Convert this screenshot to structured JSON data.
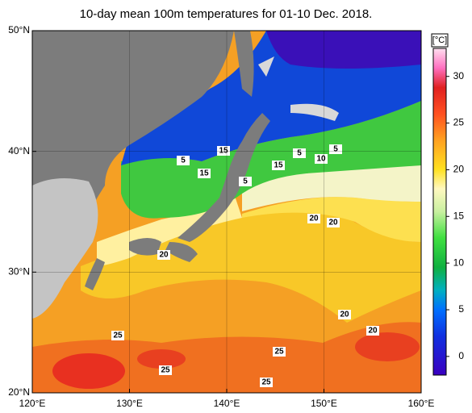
{
  "title": "10-day mean 100m temperatures for 01-10 Dec. 2018.",
  "map": {
    "lonlim": [
      120,
      160
    ],
    "latlim": [
      20,
      50
    ],
    "lonticks": [
      {
        "value": 120,
        "label": "120°E"
      },
      {
        "value": 130,
        "label": "130°E"
      },
      {
        "value": 140,
        "label": "140°E"
      },
      {
        "value": 150,
        "label": "150°E"
      },
      {
        "value": 160,
        "label": "160°E"
      }
    ],
    "latticks": [
      {
        "value": 20,
        "label": "20°N"
      },
      {
        "value": 30,
        "label": "30°N"
      },
      {
        "value": 40,
        "label": "40°N"
      },
      {
        "value": 50,
        "label": "50°N"
      }
    ]
  },
  "colorbar": {
    "unit": "[°C]",
    "lim": [
      -2,
      33
    ],
    "ticks": [
      0,
      5,
      10,
      15,
      20,
      25,
      30
    ]
  },
  "contour_labels": [
    5,
    15,
    15,
    5,
    15,
    5,
    10,
    5,
    20,
    20,
    20,
    20,
    20,
    25,
    25,
    25,
    25
  ]
}
